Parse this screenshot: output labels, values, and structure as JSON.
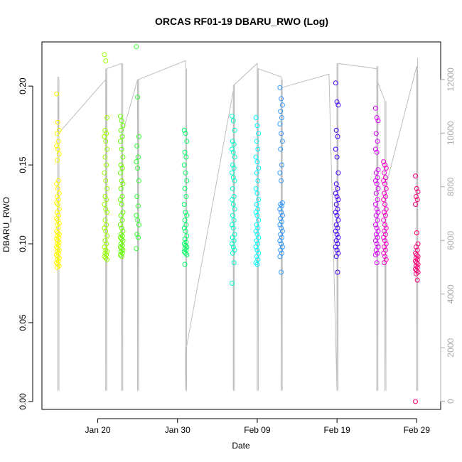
{
  "chart_data": {
    "type": "scatter",
    "title": "ORCAS RF01-19 DBARU_RWO (Log)",
    "xlabel": "Date",
    "ylabel": "DBARU_RWO",
    "x_ticks": [
      "Jan 20",
      "Jan 30",
      "Feb 09",
      "Feb 19",
      "Feb 29"
    ],
    "y_ticks": [
      "0.00",
      "0.05",
      "0.10",
      "0.15",
      "0.20"
    ],
    "y2_ticks": [
      "0",
      "2000",
      "4000",
      "6000",
      "8000",
      "10000",
      "12000"
    ],
    "xlim": [
      "2016-01-13",
      "2016-03-03"
    ],
    "ylim": [
      -0.005,
      0.228
    ],
    "y2lim": [
      -300,
      13400
    ],
    "grid": false,
    "flights": [
      {
        "date": "2016-01-15",
        "color": "#ffff00",
        "alt_range": [
          400,
          12100
        ],
        "values": [
          0.195,
          0.177,
          0.172,
          0.17,
          0.165,
          0.162,
          0.16,
          0.157,
          0.153,
          0.14,
          0.138,
          0.135,
          0.132,
          0.13,
          0.128,
          0.126,
          0.125,
          0.122,
          0.12,
          0.118,
          0.116,
          0.115,
          0.113,
          0.112,
          0.11,
          0.108,
          0.107,
          0.106,
          0.105,
          0.104,
          0.103,
          0.102,
          0.101,
          0.1,
          0.099,
          0.098,
          0.097,
          0.096,
          0.095,
          0.094,
          0.093,
          0.092,
          0.091,
          0.09,
          0.089,
          0.088,
          0.087,
          0.086,
          0.085
        ]
      },
      {
        "date": "2016-01-21",
        "color": "#99ff00",
        "alt_range": [
          400,
          12400
        ],
        "values": [
          0.22,
          0.216,
          0.18,
          0.172,
          0.17,
          0.168,
          0.165,
          0.16,
          0.155,
          0.15,
          0.145,
          0.14,
          0.135,
          0.13,
          0.128,
          0.125,
          0.122,
          0.12,
          0.115,
          0.112,
          0.11,
          0.108,
          0.105,
          0.102,
          0.1,
          0.098,
          0.096,
          0.095,
          0.094,
          0.093,
          0.092,
          0.091,
          0.09
        ]
      },
      {
        "date": "2016-01-23",
        "color": "#66ff00",
        "alt_range": [
          400,
          12600
        ],
        "values": [
          0.181,
          0.178,
          0.175,
          0.172,
          0.168,
          0.165,
          0.16,
          0.155,
          0.15,
          0.148,
          0.145,
          0.14,
          0.138,
          0.135,
          0.13,
          0.128,
          0.125,
          0.12,
          0.118,
          0.115,
          0.112,
          0.11,
          0.108,
          0.106,
          0.105,
          0.104,
          0.103,
          0.102,
          0.1,
          0.099,
          0.098,
          0.097,
          0.096,
          0.095,
          0.094,
          0.093,
          0.092
        ]
      },
      {
        "date": "2016-01-25",
        "color": "#33ff33",
        "alt_range": [
          400,
          12000
        ],
        "values": [
          0.225,
          0.193,
          0.168,
          0.162,
          0.155,
          0.152,
          0.148,
          0.14,
          0.13,
          0.124,
          0.118,
          0.115,
          0.112,
          0.106,
          0.104,
          0.097
        ]
      },
      {
        "date": "2016-01-31",
        "color": "#00ff66",
        "alt_range": [
          400,
          12400
        ],
        "values": [
          0.172,
          0.17,
          0.165,
          0.158,
          0.155,
          0.15,
          0.145,
          0.14,
          0.135,
          0.13,
          0.125,
          0.12,
          0.118,
          0.115,
          0.112,
          0.11,
          0.108,
          0.105,
          0.103,
          0.101,
          0.1,
          0.099,
          0.098,
          0.097,
          0.096,
          0.095,
          0.094,
          0.093,
          0.087
        ]
      },
      {
        "date": "2016-02-06",
        "color": "#00ffcc",
        "alt_range": [
          400,
          11800
        ],
        "values": [
          0.181,
          0.178,
          0.172,
          0.165,
          0.163,
          0.16,
          0.158,
          0.155,
          0.15,
          0.148,
          0.145,
          0.142,
          0.14,
          0.135,
          0.13,
          0.128,
          0.125,
          0.122,
          0.118,
          0.115,
          0.112,
          0.11,
          0.106,
          0.104,
          0.102,
          0.1,
          0.098,
          0.096,
          0.094,
          0.088,
          0.075
        ]
      },
      {
        "date": "2016-02-09",
        "color": "#00ffff",
        "alt_range": [
          400,
          12400
        ],
        "values": [
          0.18,
          0.175,
          0.17,
          0.165,
          0.16,
          0.155,
          0.152,
          0.148,
          0.145,
          0.14,
          0.135,
          0.132,
          0.128,
          0.125,
          0.122,
          0.12,
          0.118,
          0.115,
          0.112,
          0.11,
          0.108,
          0.106,
          0.104,
          0.102,
          0.1,
          0.098,
          0.096,
          0.094,
          0.092,
          0.09,
          0.088,
          0.087
        ]
      },
      {
        "date": "2016-02-12",
        "color": "#3399ff",
        "alt_range": [
          400,
          12000
        ],
        "values": [
          0.199,
          0.192,
          0.188,
          0.184,
          0.18,
          0.176,
          0.17,
          0.165,
          0.16,
          0.15,
          0.145,
          0.14,
          0.126,
          0.125,
          0.124,
          0.122,
          0.12,
          0.118,
          0.116,
          0.114,
          0.112,
          0.11,
          0.108,
          0.106,
          0.104,
          0.102,
          0.1,
          0.098,
          0.096,
          0.094,
          0.092,
          0.082
        ]
      },
      {
        "date": "2016-02-19",
        "color": "#4400ff",
        "alt_range": [
          400,
          12600
        ],
        "values": [
          0.202,
          0.19,
          0.188,
          0.172,
          0.168,
          0.16,
          0.155,
          0.145,
          0.138,
          0.135,
          0.132,
          0.13,
          0.128,
          0.125,
          0.122,
          0.12,
          0.118,
          0.115,
          0.112,
          0.11,
          0.108,
          0.106,
          0.104,
          0.102,
          0.1,
          0.098,
          0.096,
          0.094,
          0.092,
          0.082
        ]
      },
      {
        "date": "2016-02-24",
        "color": "#dd00ff",
        "alt_range": [
          400,
          12500
        ],
        "values": [
          0.186,
          0.18,
          0.178,
          0.17,
          0.165,
          0.16,
          0.158,
          0.147,
          0.145,
          0.142,
          0.14,
          0.138,
          0.135,
          0.132,
          0.128,
          0.125,
          0.122,
          0.12,
          0.118,
          0.115,
          0.112,
          0.11,
          0.108,
          0.106,
          0.104,
          0.102,
          0.1,
          0.098,
          0.096,
          0.094,
          0.093,
          0.088
        ]
      },
      {
        "date": "2016-02-25",
        "color": "#ff00cc",
        "alt_range": [
          400,
          11200
        ],
        "values": [
          0.152,
          0.15,
          0.148,
          0.145,
          0.142,
          0.14,
          0.138,
          0.135,
          0.132,
          0.13,
          0.128,
          0.125,
          0.122,
          0.12,
          0.118,
          0.115,
          0.112,
          0.11,
          0.108,
          0.106,
          0.104,
          0.102,
          0.1,
          0.098,
          0.096,
          0.094,
          0.092,
          0.09,
          0.088
        ]
      },
      {
        "date": "2016-02-29",
        "color": "#ff0077",
        "alt_range": [
          400,
          12200
        ],
        "values": [
          0.143,
          0.135,
          0.133,
          0.13,
          0.128,
          0.125,
          0.107,
          0.1,
          0.098,
          0.096,
          0.094,
          0.093,
          0.092,
          0.091,
          0.09,
          0.089,
          0.088,
          0.087,
          0.086,
          0.085,
          0.084,
          0.083,
          0.082,
          0.081,
          0.077,
          0.0
        ]
      }
    ],
    "altitude_track": [
      [
        "2016-01-15",
        400
      ],
      [
        "2016-01-15",
        12100
      ],
      [
        "2016-01-15",
        10000
      ],
      [
        "2016-01-21",
        12000
      ],
      [
        "2016-01-21",
        400
      ],
      [
        "2016-01-21",
        12400
      ],
      [
        "2016-01-23",
        12600
      ],
      [
        "2016-01-23",
        400
      ],
      [
        "2016-01-23",
        10000
      ],
      [
        "2016-01-25",
        12000
      ],
      [
        "2016-01-25",
        400
      ],
      [
        "2016-01-25",
        12000
      ],
      [
        "2016-01-31",
        12700
      ],
      [
        "2016-01-31",
        400
      ],
      [
        "2016-01-31",
        2000
      ],
      [
        "2016-02-06",
        11600
      ],
      [
        "2016-02-06",
        400
      ],
      [
        "2016-02-06",
        11800
      ],
      [
        "2016-02-09",
        12600
      ],
      [
        "2016-02-09",
        400
      ],
      [
        "2016-02-09",
        12400
      ],
      [
        "2016-02-12",
        12100
      ],
      [
        "2016-02-12",
        400
      ],
      [
        "2016-02-12",
        11700
      ],
      [
        "2016-02-18",
        12200
      ],
      [
        "2016-02-19",
        400
      ],
      [
        "2016-02-19",
        12600
      ],
      [
        "2016-02-24",
        12400
      ],
      [
        "2016-02-24",
        400
      ],
      [
        "2016-02-24",
        11900
      ],
      [
        "2016-02-25",
        11200
      ],
      [
        "2016-02-25",
        400
      ],
      [
        "2016-02-25",
        8000
      ],
      [
        "2016-02-29",
        12500
      ],
      [
        "2016-02-29",
        400
      ],
      [
        "2016-02-29",
        12800
      ]
    ]
  }
}
